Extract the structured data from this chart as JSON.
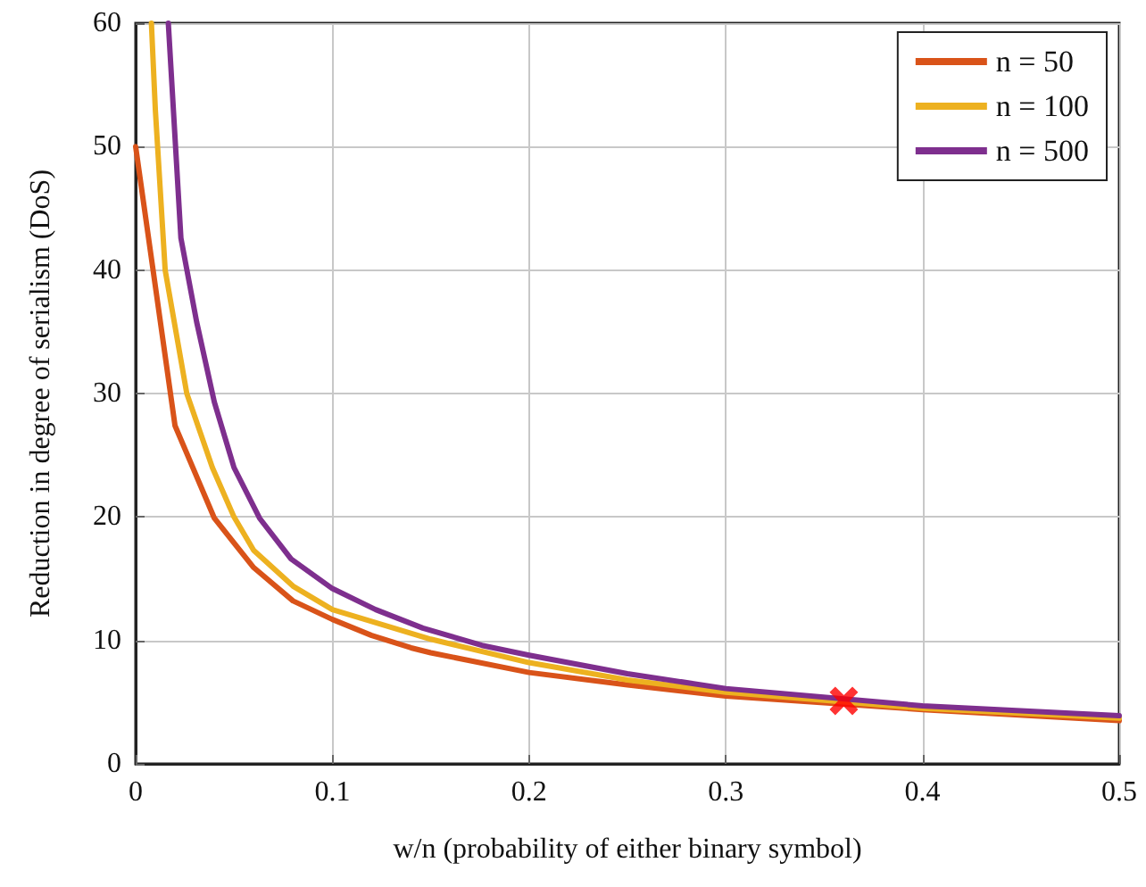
{
  "chart_data": {
    "type": "line",
    "xlabel": "w/n (probability of either binary symbol)",
    "ylabel": "Reduction in degree of serialism (DoS)",
    "xlim": [
      0,
      0.5
    ],
    "xticks": [
      0,
      0.1,
      0.2,
      0.3,
      0.4,
      0.5
    ],
    "ylim": [
      0,
      60
    ],
    "yticks": [
      0,
      10,
      20,
      30,
      40,
      50,
      60
    ],
    "grid": true,
    "legend": "top right",
    "marker": "none",
    "line_style": "solid",
    "series": [
      {
        "name": "n = 50",
        "color": "#d95319",
        "x": [
          0,
          0.02,
          0.04,
          0.06,
          0.08,
          0.1,
          0.12,
          0.14,
          0.15,
          0.2,
          0.25,
          0.3,
          0.4,
          0.5
        ],
        "values": [
          50,
          27.4,
          19.9,
          15.9,
          13.2,
          11.7,
          10.4,
          9.4,
          9,
          7.4,
          6.4,
          5.5,
          4.4,
          3.5
        ]
      },
      {
        "name": "n = 100",
        "color": "#edb120",
        "x": [
          0.008,
          0.01,
          0.015,
          0.026,
          0.039,
          0.05,
          0.06,
          0.08,
          0.1,
          0.15,
          0.2,
          0.25,
          0.3,
          0.4,
          0.5
        ],
        "values": [
          60,
          53,
          40,
          30,
          24,
          20,
          17.3,
          14.4,
          12.5,
          10.1,
          8.2,
          6.8,
          5.8,
          4.5,
          3.7
        ]
      },
      {
        "name": "n = 500",
        "color": "#7e2f8e",
        "x": [
          0.0166,
          0.023,
          0.031,
          0.04,
          0.05,
          0.063,
          0.079,
          0.1,
          0.122,
          0.146,
          0.176,
          0.2,
          0.25,
          0.3,
          0.4,
          0.5
        ],
        "values": [
          60,
          42.6,
          35.8,
          29.3,
          24,
          19.9,
          16.6,
          14.2,
          12.5,
          11,
          9.6,
          8.8,
          7.3,
          6.1,
          4.7,
          3.9
        ]
      },
      {
        "type": "scatter",
        "marker": "cross",
        "color": "#ff0000",
        "x": [
          0.36
        ],
        "values": [
          5.1
        ]
      }
    ]
  }
}
